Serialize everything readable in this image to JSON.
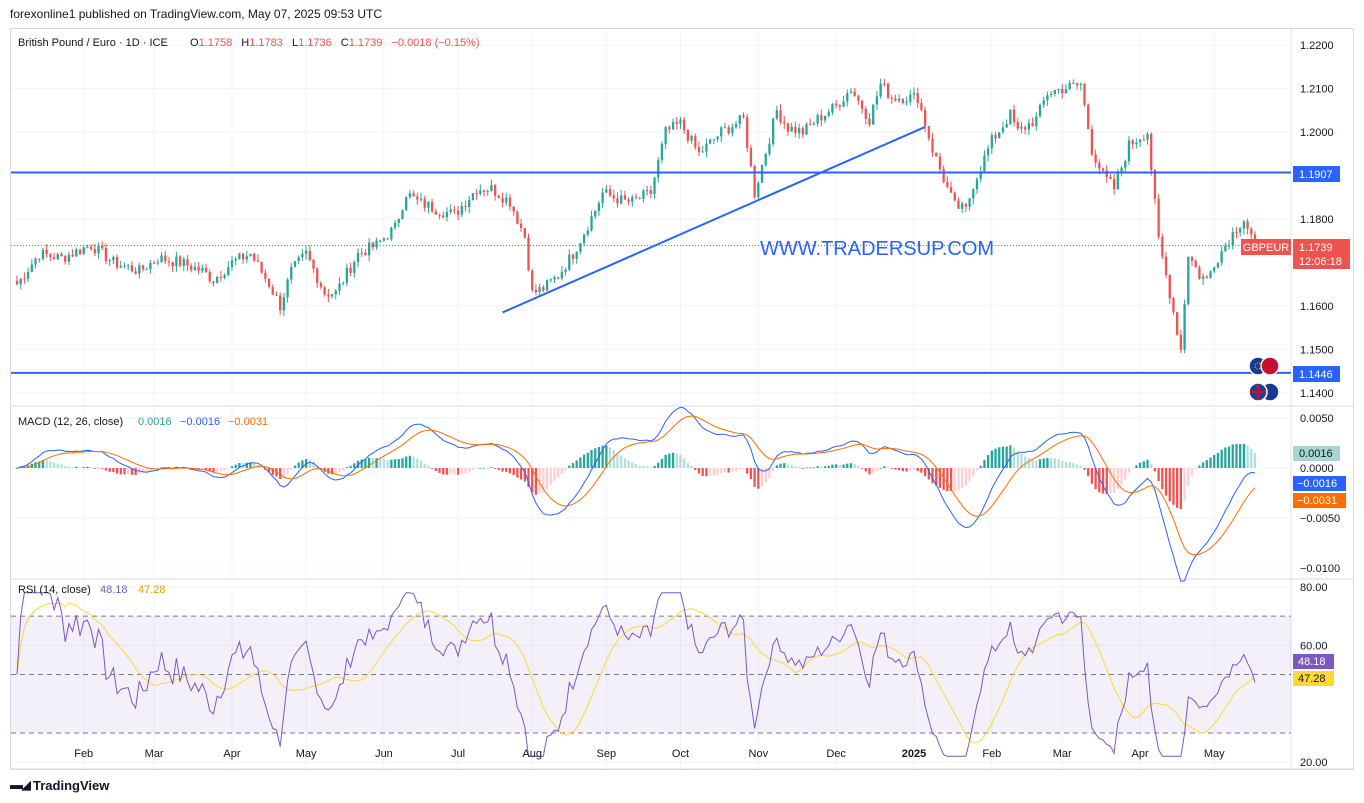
{
  "publisher_line": "forexonline1 published on TradingView.com, May 07, 2025 09:53 UTC",
  "footer_brand": "TradingView",
  "watermark": "WWW.TRADERSUP.COM",
  "colors": {
    "up": "#26a69a",
    "down": "#ef5350",
    "line": "#2962ff",
    "macd": "#2962ff",
    "signal": "#ff6d00",
    "rsi": "#7e57c2",
    "rsi_ma": "#fdd835",
    "grid": "#f0f3fa"
  },
  "chart_data": {
    "type": "candlestick",
    "title": "British Pound / Euro · 1D · ICE",
    "ohlc": {
      "o_label": "O",
      "o": "1.1758",
      "h_label": "H",
      "h": "1.1783",
      "l_label": "L",
      "l": "1.1736",
      "c_label": "C",
      "c": "1.1739",
      "change": "−0.0018 (−0.15%)"
    },
    "symbol_tag": "GBPEUR",
    "last_price": "1.1739",
    "countdown": "12:06:18",
    "price_axis_ticks": [
      "1.2200",
      "1.2100",
      "1.2000",
      "1.1800",
      "1.1600",
      "1.1500",
      "1.1400"
    ],
    "price_ylim": [
      1.1372,
      1.2235
    ],
    "levels": [
      {
        "label": "1.1907",
        "value": 1.1907
      },
      {
        "label": "1.1446",
        "value": 1.1446
      }
    ],
    "trendlines": [
      {
        "from": {
          "t": 131,
          "v": 1.1585
        },
        "to": {
          "t": 245,
          "v": 1.2012
        }
      }
    ],
    "time_axis": [
      {
        "label": "Feb",
        "t": 18
      },
      {
        "label": "Mar",
        "t": 37
      },
      {
        "label": "Apr",
        "t": 58
      },
      {
        "label": "May",
        "t": 78
      },
      {
        "label": "Jun",
        "t": 99
      },
      {
        "label": "Jul",
        "t": 119
      },
      {
        "label": "Aug",
        "t": 139
      },
      {
        "label": "Sep",
        "t": 159
      },
      {
        "label": "Oct",
        "t": 179
      },
      {
        "label": "Nov",
        "t": 200
      },
      {
        "label": "Dec",
        "t": 221
      },
      {
        "label": "2025",
        "t": 242
      },
      {
        "label": "Feb",
        "t": 263
      },
      {
        "label": "Mar",
        "t": 282
      },
      {
        "label": "Apr",
        "t": 303
      },
      {
        "label": "May",
        "t": 323
      }
    ],
    "anchors": [
      [
        0,
        1.165
      ],
      [
        6,
        1.172
      ],
      [
        12,
        1.171
      ],
      [
        20,
        1.174
      ],
      [
        26,
        1.17
      ],
      [
        33,
        1.168
      ],
      [
        38,
        1.171
      ],
      [
        44,
        1.17
      ],
      [
        50,
        1.168
      ],
      [
        53,
        1.166
      ],
      [
        58,
        1.17
      ],
      [
        63,
        1.172
      ],
      [
        68,
        1.165
      ],
      [
        71,
        1.16
      ],
      [
        74,
        1.168
      ],
      [
        78,
        1.172
      ],
      [
        83,
        1.163
      ],
      [
        86,
        1.163
      ],
      [
        92,
        1.172
      ],
      [
        97,
        1.174
      ],
      [
        102,
        1.178
      ],
      [
        105,
        1.186
      ],
      [
        108,
        1.184
      ],
      [
        114,
        1.182
      ],
      [
        118,
        1.181
      ],
      [
        124,
        1.187
      ],
      [
        128,
        1.187
      ],
      [
        133,
        1.184
      ],
      [
        137,
        1.176
      ],
      [
        139,
        1.163
      ],
      [
        142,
        1.164
      ],
      [
        146,
        1.167
      ],
      [
        150,
        1.172
      ],
      [
        156,
        1.182
      ],
      [
        158,
        1.186
      ],
      [
        164,
        1.184
      ],
      [
        166,
        1.184
      ],
      [
        171,
        1.186
      ],
      [
        175,
        1.2
      ],
      [
        179,
        1.202
      ],
      [
        184,
        1.195
      ],
      [
        190,
        1.2
      ],
      [
        196,
        1.203
      ],
      [
        199,
        1.186
      ],
      [
        205,
        1.205
      ],
      [
        208,
        1.201
      ],
      [
        212,
        1.2
      ],
      [
        216,
        1.203
      ],
      [
        221,
        1.206
      ],
      [
        225,
        1.21
      ],
      [
        230,
        1.203
      ],
      [
        233,
        1.211
      ],
      [
        236,
        1.208
      ],
      [
        240,
        1.208
      ],
      [
        243,
        1.208
      ],
      [
        247,
        1.196
      ],
      [
        251,
        1.187
      ],
      [
        253,
        1.183
      ],
      [
        256,
        1.182
      ],
      [
        258,
        1.188
      ],
      [
        263,
        1.198
      ],
      [
        268,
        1.204
      ],
      [
        270,
        1.2
      ],
      [
        275,
        1.203
      ],
      [
        278,
        1.209
      ],
      [
        282,
        1.21
      ],
      [
        287,
        1.211
      ],
      [
        290,
        1.196
      ],
      [
        293,
        1.19
      ],
      [
        296,
        1.187
      ],
      [
        300,
        1.197
      ],
      [
        303,
        1.199
      ],
      [
        305,
        1.2
      ],
      [
        308,
        1.175
      ],
      [
        311,
        1.163
      ],
      [
        314,
        1.15
      ],
      [
        316,
        1.172
      ],
      [
        319,
        1.167
      ],
      [
        321,
        1.166
      ],
      [
        323,
        1.17
      ],
      [
        326,
        1.174
      ],
      [
        329,
        1.178
      ],
      [
        331,
        1.18
      ],
      [
        334,
        1.1739
      ]
    ],
    "macd": {
      "label": "MACD (12, 26, close)",
      "hist_value": "0.0016",
      "macd_value": "−0.0016",
      "signal_value": "−0.0031",
      "axis_ticks": [
        "0.0050",
        "0.0000",
        "−0.0050",
        "−0.0100"
      ],
      "ylim": [
        -0.011,
        0.006
      ]
    },
    "rsi": {
      "label": "RSI (14, close)",
      "value": "48.18",
      "ma_value": "47.28",
      "axis_ticks": [
        "80.00",
        "60.00",
        "20.00"
      ],
      "ylim": [
        18,
        82
      ],
      "band": [
        30,
        70
      ]
    }
  }
}
